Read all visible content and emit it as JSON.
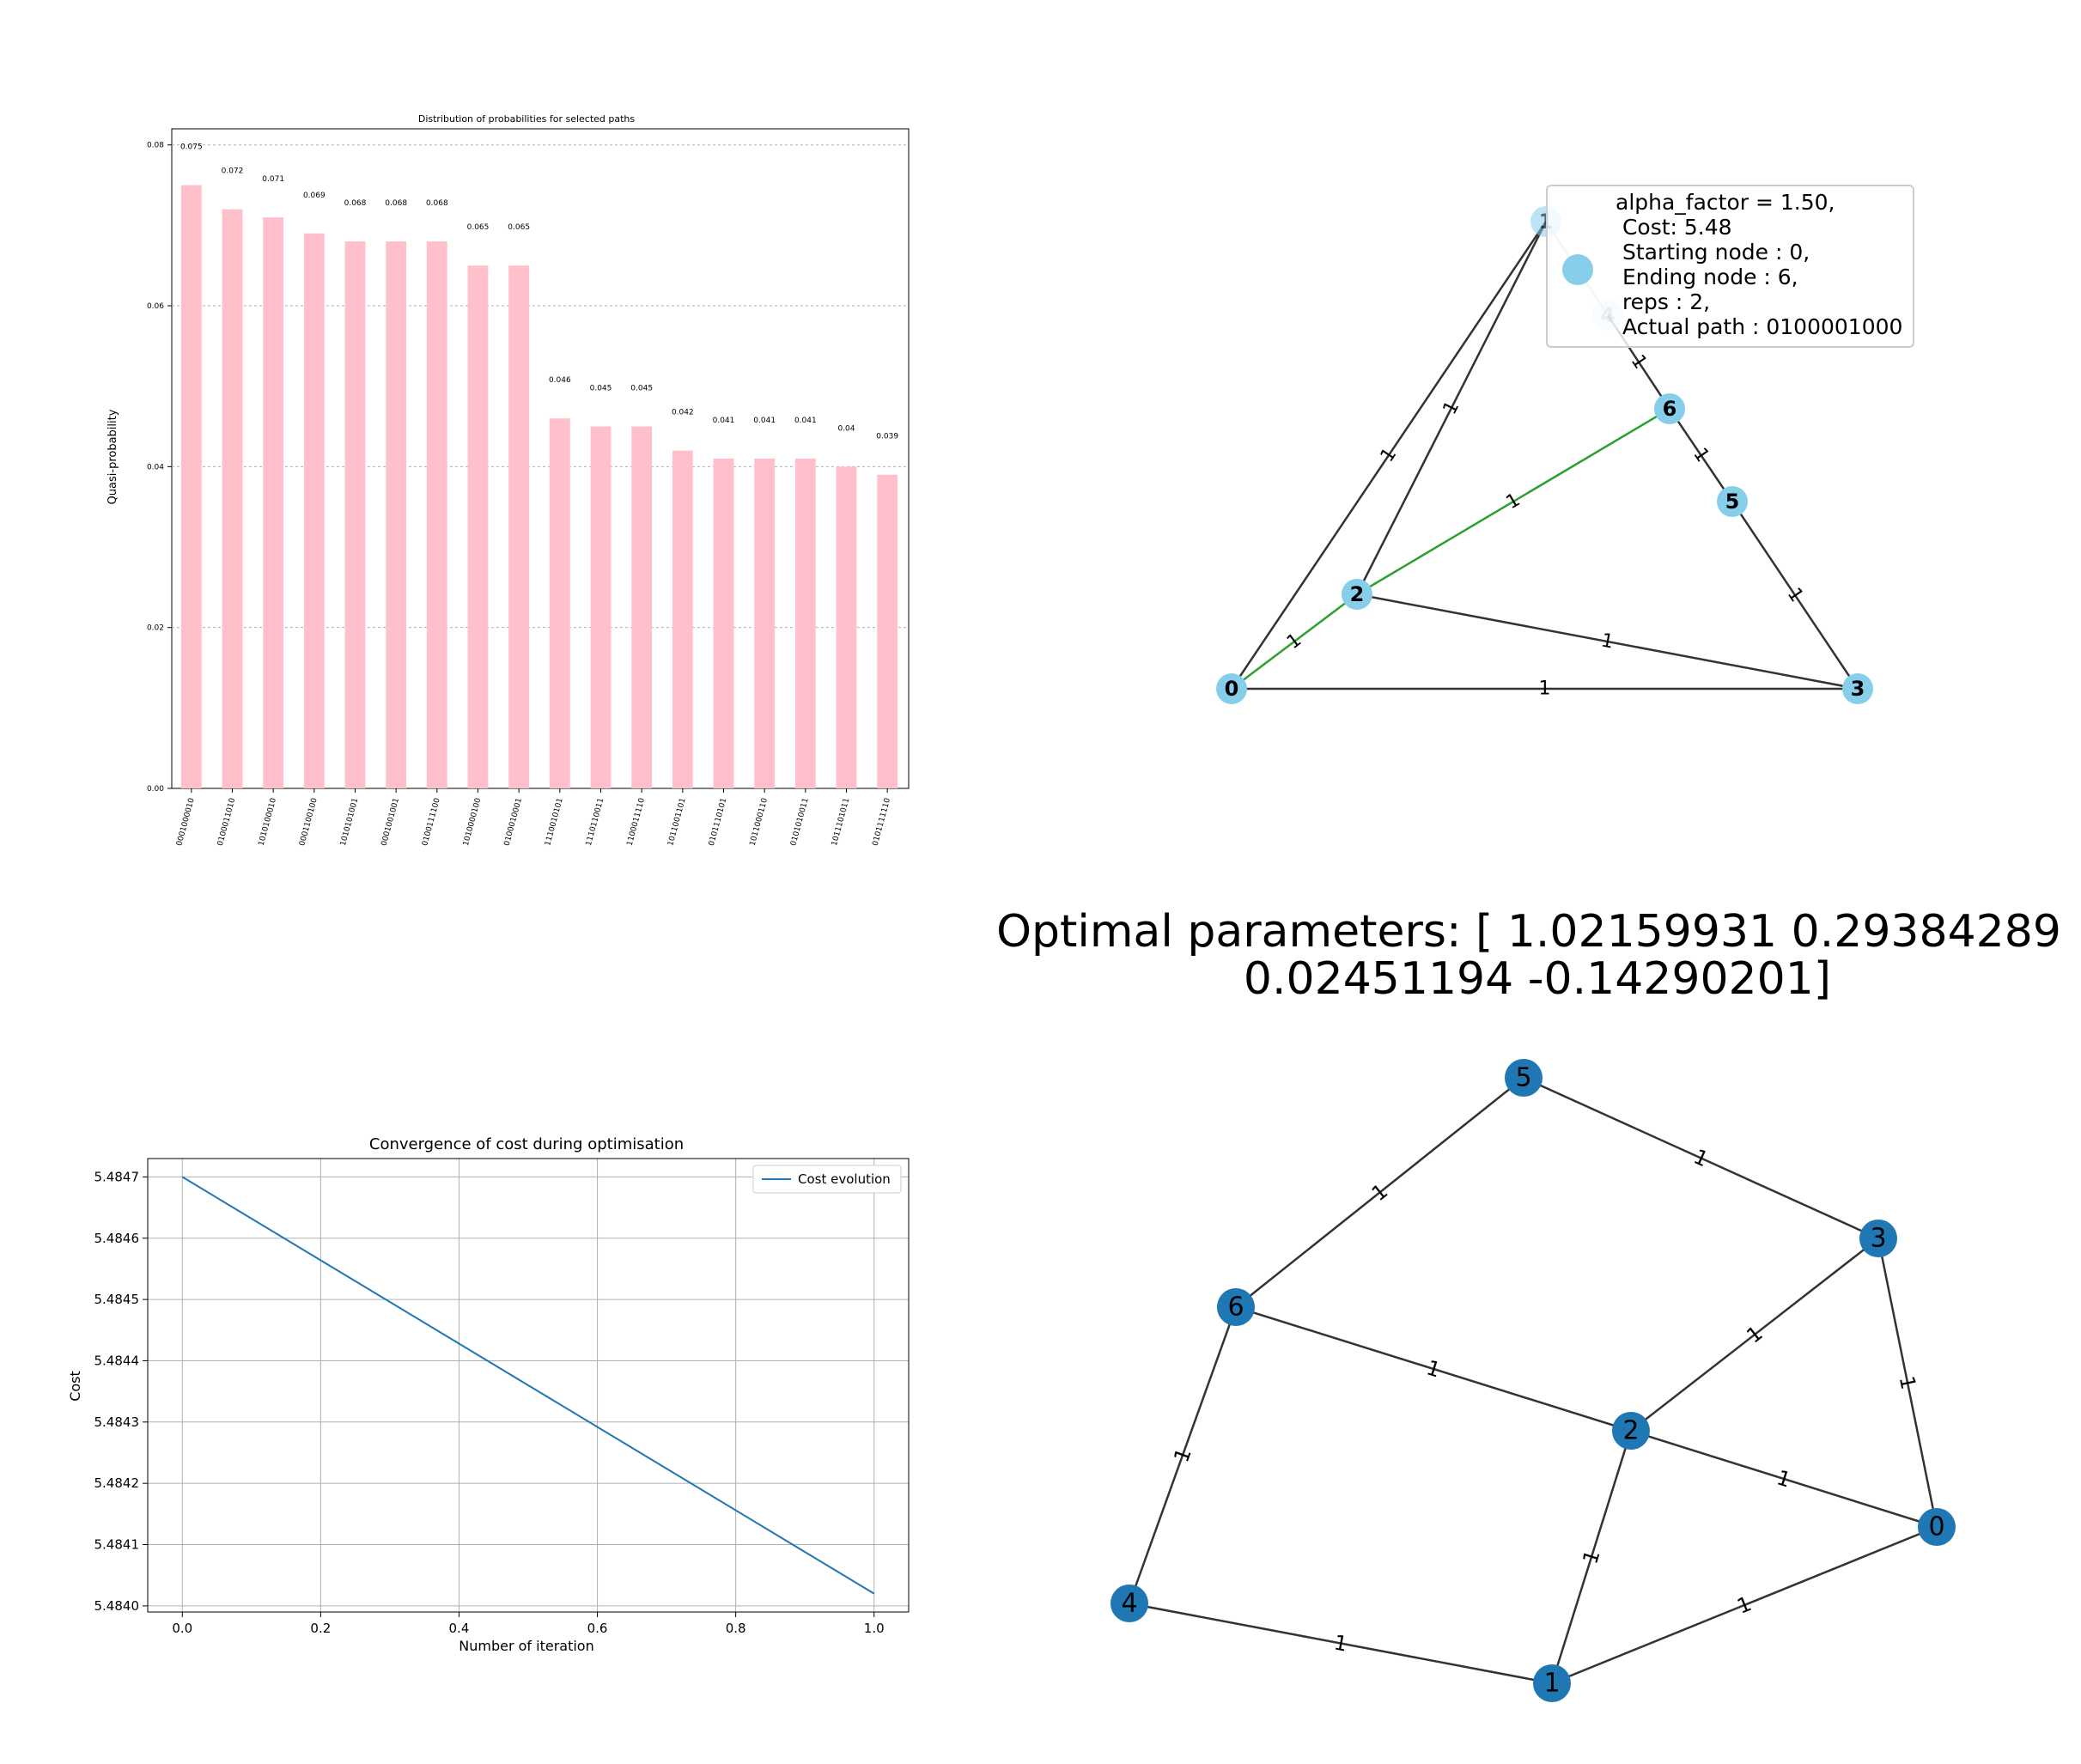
{
  "chart_data": [
    {
      "type": "bar",
      "title": "Distribution of probabilities for selected paths",
      "xlabel": "",
      "ylabel": "Quasi-probability",
      "ylim": [
        0,
        0.082
      ],
      "yticks": [
        0.0,
        0.02,
        0.04,
        0.06,
        0.08
      ],
      "ytick_labels": [
        "0.00",
        "0.02",
        "0.04",
        "0.06",
        "0.08"
      ],
      "grid": "horizontal-dashed",
      "bar_color": "#ffc0cb",
      "categories": [
        "0001000010",
        "0100011010",
        "1010100010",
        "0001100100",
        "1010101001",
        "0001001001",
        "0100111100",
        "1010000100",
        "0100010001",
        "1110010101",
        "1110110011",
        "1100011110",
        "1011001101",
        "0101110101",
        "1011000110",
        "0101010011",
        "1011101011",
        "0101111110"
      ],
      "values": [
        0.075,
        0.072,
        0.071,
        0.069,
        0.068,
        0.068,
        0.068,
        0.065,
        0.065,
        0.046,
        0.045,
        0.045,
        0.042,
        0.041,
        0.041,
        0.041,
        0.04,
        0.039
      ],
      "value_labels": [
        "0.075",
        "0.072",
        "0.071",
        "0.069",
        "0.068",
        "0.068",
        "0.068",
        "0.065",
        "0.065",
        "0.046",
        "0.045",
        "0.045",
        "0.042",
        "0.041",
        "0.041",
        "0.041",
        "0.04",
        "0.039"
      ]
    },
    {
      "type": "line",
      "title": "Convergence of cost during optimisation",
      "xlabel": "Number of iteration",
      "ylabel": "Cost",
      "xlim": [
        -0.05,
        1.05
      ],
      "ylim": [
        5.48399,
        5.48473
      ],
      "xticks": [
        0.0,
        0.2,
        0.4,
        0.6,
        0.8,
        1.0
      ],
      "xtick_labels": [
        "0.0",
        "0.2",
        "0.4",
        "0.6",
        "0.8",
        "1.0"
      ],
      "yticks": [
        5.484,
        5.4841,
        5.4842,
        5.4843,
        5.4844,
        5.4845,
        5.4846,
        5.4847
      ],
      "ytick_labels": [
        "5.4840",
        "5.4841",
        "5.4842",
        "5.4843",
        "5.4844",
        "5.4845",
        "5.4846",
        "5.4847"
      ],
      "grid": true,
      "legend": "top-right",
      "series": [
        {
          "name": "Cost evolution",
          "color": "#1f77b4",
          "x": [
            0.0,
            1.0
          ],
          "y": [
            5.4847,
            5.48402
          ]
        }
      ]
    }
  ],
  "graph_top": {
    "node_color": "#87ceeb",
    "nodes": [
      "0",
      "1",
      "2",
      "3",
      "4",
      "5",
      "6"
    ],
    "edges": [
      {
        "u": "0",
        "v": "1",
        "label": "1",
        "color": "#333333"
      },
      {
        "u": "0",
        "v": "2",
        "label": "1",
        "color": "#2ca02c"
      },
      {
        "u": "0",
        "v": "3",
        "label": "1",
        "color": "#333333"
      },
      {
        "u": "1",
        "v": "2",
        "label": "1",
        "color": "#333333"
      },
      {
        "u": "1",
        "v": "4",
        "label": "",
        "color": "#cccccc"
      },
      {
        "u": "4",
        "v": "6",
        "label": "1",
        "color": "#333333"
      },
      {
        "u": "2",
        "v": "6",
        "label": "1",
        "color": "#2ca02c"
      },
      {
        "u": "6",
        "v": "5",
        "label": "1",
        "color": "#333333"
      },
      {
        "u": "5",
        "v": "3",
        "label": "1",
        "color": "#333333"
      },
      {
        "u": "2",
        "v": "3",
        "label": "1",
        "color": "#333333"
      }
    ],
    "legend_lines": [
      "alpha_factor = 1.50,",
      " Cost: 5.48",
      " Starting node : 0,",
      " Ending node : 6,",
      " reps : 2,",
      " Actual path : 0100001000"
    ]
  },
  "optimal_params": {
    "line1": "Optimal parameters:  [ 1.02159931  0.29384289",
    "line2": "0.02451194 -0.14290201]"
  },
  "graph_bottom": {
    "node_color": "#1f77b4",
    "nodes": [
      "0",
      "1",
      "2",
      "3",
      "4",
      "5",
      "6"
    ],
    "edges": [
      {
        "u": "5",
        "v": "6",
        "label": "1"
      },
      {
        "u": "5",
        "v": "3",
        "label": "1"
      },
      {
        "u": "6",
        "v": "2",
        "label": "1"
      },
      {
        "u": "6",
        "v": "4",
        "label": "1"
      },
      {
        "u": "3",
        "v": "2",
        "label": "1"
      },
      {
        "u": "3",
        "v": "0",
        "label": "1"
      },
      {
        "u": "2",
        "v": "0",
        "label": "1"
      },
      {
        "u": "2",
        "v": "1",
        "label": "1"
      },
      {
        "u": "4",
        "v": "1",
        "label": "1"
      },
      {
        "u": "1",
        "v": "0",
        "label": "1"
      }
    ]
  }
}
